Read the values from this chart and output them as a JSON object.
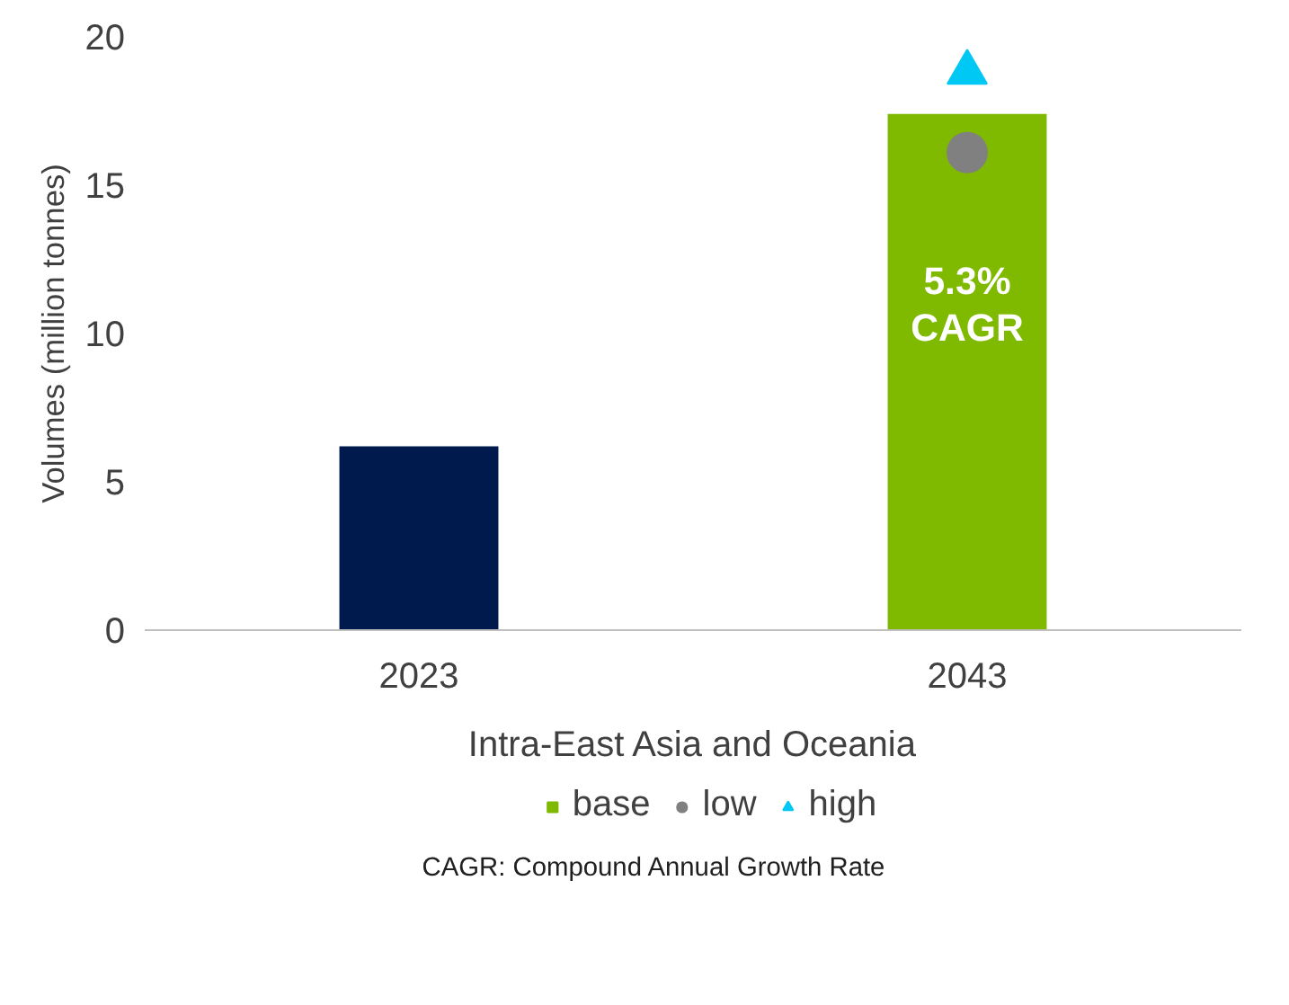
{
  "chart_data": {
    "type": "bar",
    "categories": [
      "2023",
      "2043"
    ],
    "xlabel": "Intra-East Asia and Oceania",
    "ylabel": "Volumes (million tonnes)",
    "ylim": [
      0,
      20
    ],
    "yticks": [
      0,
      5,
      10,
      15,
      20
    ],
    "grid": false,
    "legend": "bottom",
    "series": [
      {
        "name": "base",
        "color": "#7fba00",
        "colors": [
          "#001a4d",
          "#7fba00"
        ],
        "values": [
          6.2,
          17.4
        ]
      },
      {
        "name": "low",
        "type": "scatter",
        "marker": "circle",
        "color": "#808080",
        "values": [
          null,
          16.1
        ]
      },
      {
        "name": "high",
        "type": "scatter",
        "marker": "triangle",
        "color": "#00c8f5",
        "values": [
          null,
          18.8
        ]
      }
    ],
    "annotations": [
      "5.3%\nCAGR",
      "CAGR: Compound Annual Growth Rate"
    ]
  }
}
